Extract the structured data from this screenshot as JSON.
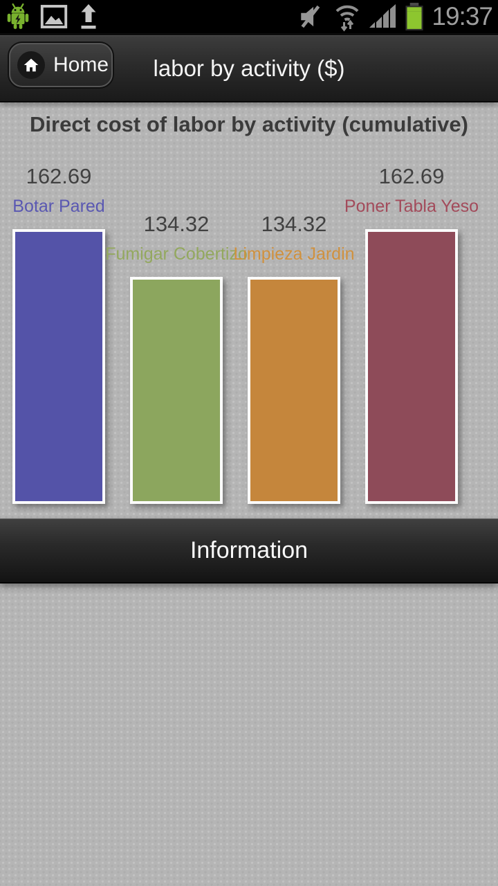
{
  "status_bar": {
    "time": "19:37"
  },
  "header": {
    "home_label": "Home",
    "title": "labor by activity ($)"
  },
  "chart_data": {
    "type": "bar",
    "title": "Direct cost of labor by activity (cumulative)",
    "categories": [
      "Botar Pared",
      "Fumigar Cobertizo",
      "Limpieza Jardin",
      "Poner Tabla Yeso"
    ],
    "values": [
      162.69,
      134.32,
      134.32,
      162.69
    ],
    "value_labels": [
      "162.69",
      "134.32",
      "134.32",
      "162.69"
    ],
    "bar_colors": [
      "#5453a8",
      "#8ca65e",
      "#c5863c",
      "#8e4b59"
    ],
    "category_label_colors": [
      "#5a58b2",
      "#93a85e",
      "#d0913e",
      "#a34b5b"
    ],
    "value_label_color": "#414141",
    "xlabel": "",
    "ylabel": "",
    "ylim": [
      0,
      170
    ],
    "grid": false,
    "legend": false,
    "value_labels_shown": true
  },
  "footer": {
    "information_label": "Information"
  }
}
